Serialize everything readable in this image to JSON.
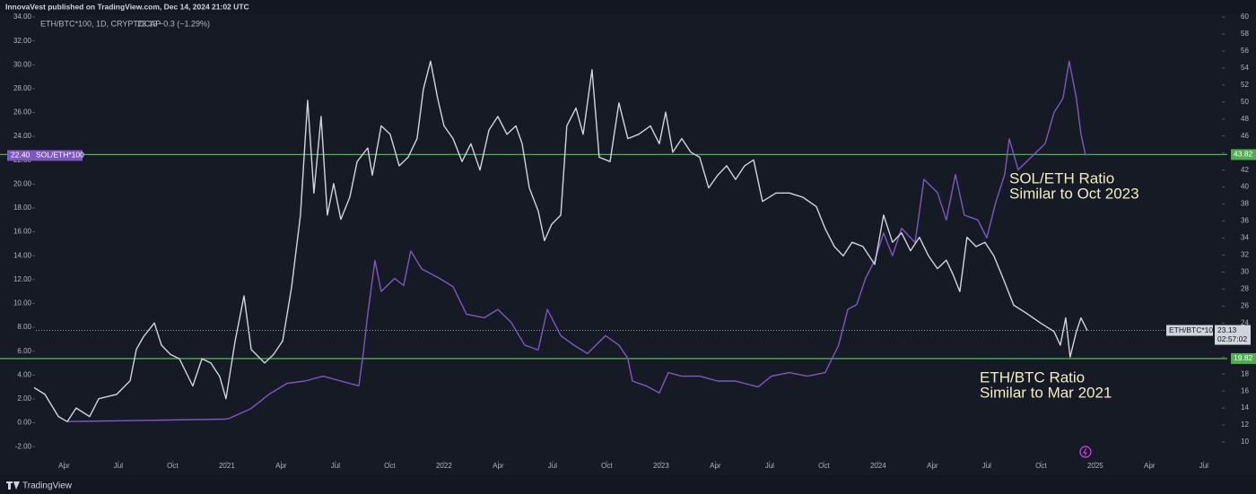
{
  "header": "InnovaVest published on TradingView.com, Dec 14, 2024 21:02 UTC",
  "footer": "TradingView",
  "chart_data": {
    "type": "line",
    "legend": {
      "symbol": "ETH/BTC*100, 1D, CRYPTOCAP",
      "change": "−0.3 (−1.29%)"
    },
    "xlim": [
      2019.955,
      2025.575
    ],
    "xticks": [
      {
        "value": 2020.25,
        "label": "Apr"
      },
      {
        "value": 2020.5,
        "label": "Jul"
      },
      {
        "value": 2020.75,
        "label": "Oct"
      },
      2021,
      {
        "value": 2021.25,
        "label": "Apr"
      },
      {
        "value": 2021.5,
        "label": "Jul"
      },
      {
        "value": 2021.75,
        "label": "Oct"
      },
      2022,
      {
        "value": 2022.25,
        "label": "Apr"
      },
      {
        "value": 2022.5,
        "label": "Jul"
      },
      {
        "value": 2022.75,
        "label": "Oct"
      },
      2023,
      {
        "value": 2023.25,
        "label": "Apr"
      },
      {
        "value": 2023.5,
        "label": "Jul"
      },
      {
        "value": 2023.75,
        "label": "Oct"
      },
      2024,
      {
        "value": 2024.25,
        "label": "Apr"
      },
      {
        "value": 2024.5,
        "label": "Jul"
      },
      {
        "value": 2024.75,
        "label": "Oct"
      },
      2025,
      {
        "value": 2025.25,
        "label": "Apr"
      },
      {
        "value": 2025.5,
        "label": "Jul"
      }
    ],
    "ylim": [
      -3.04,
      34.53
    ],
    "yticks": [
      {
        "value": 34,
        "label": "34.00"
      },
      {
        "value": 32,
        "label": "32.00"
      },
      {
        "value": 30,
        "label": "30.00"
      },
      {
        "value": 28,
        "label": "28.00"
      },
      {
        "value": 26,
        "label": "26.00"
      },
      {
        "value": 24,
        "label": "24.00"
      },
      {
        "value": 22,
        "label": "22.00"
      },
      {
        "value": 20,
        "label": "20.00"
      },
      {
        "value": 18,
        "label": "18.00"
      },
      {
        "value": 16,
        "label": "16.00"
      },
      {
        "value": 14,
        "label": "14.00"
      },
      {
        "value": 12,
        "label": "12.00"
      },
      {
        "value": 10,
        "label": "10.00"
      },
      {
        "value": 8,
        "label": "8.00"
      },
      {
        "value": 6,
        "label": "6.00"
      },
      {
        "value": 4,
        "label": "4.00"
      },
      {
        "value": 2,
        "label": "2.00"
      },
      {
        "value": 0,
        "label": "0.00"
      },
      {
        "value": -2,
        "label": "-2.00"
      }
    ],
    "y2lim": [
      8.0,
      60.74
    ],
    "y2ticks": [
      60,
      58,
      56,
      54,
      52,
      50,
      48,
      46,
      44,
      42,
      40,
      38,
      36,
      34,
      32,
      30,
      28,
      26,
      24,
      22,
      20,
      18,
      16,
      14,
      12,
      10
    ],
    "series": [
      {
        "name": "SOL/ETH*100",
        "color": "#7e57c2",
        "axis": "y",
        "x": [
          2020.265,
          2020.988,
          2021.009,
          2021.112,
          2021.195,
          2021.277,
          2021.36,
          2021.443,
          2021.525,
          2021.608,
          2021.628,
          2021.649,
          2021.682,
          2021.711,
          2021.773,
          2021.814,
          2021.847,
          2021.897,
          2021.98,
          2022.042,
          2022.104,
          2022.186,
          2022.248,
          2022.31,
          2022.372,
          2022.434,
          2022.476,
          2022.538,
          2022.599,
          2022.661,
          2022.744,
          2022.806,
          2022.847,
          2022.868,
          2022.93,
          2022.992,
          2023.033,
          2023.095,
          2023.178,
          2023.261,
          2023.343,
          2023.447,
          2023.509,
          2023.591,
          2023.674,
          2023.756,
          2023.818,
          2023.86,
          2023.901,
          2023.942,
          2023.984,
          2024.025,
          2024.066,
          2024.108,
          2024.17,
          2024.211,
          2024.273,
          2024.314,
          2024.356,
          2024.397,
          2024.459,
          2024.5,
          2024.542,
          2024.583,
          2024.604,
          2024.645,
          2024.707,
          2024.769,
          2024.81,
          2024.851,
          2024.88,
          2024.913,
          2024.934,
          2024.955
        ],
        "values": [
          0.1,
          0.3,
          0.35,
          1.2,
          2.4,
          3.3,
          3.5,
          3.9,
          3.5,
          3.1,
          5.8,
          9.1,
          13.6,
          11,
          12.1,
          11.5,
          14.4,
          12.9,
          12.1,
          11.4,
          9.1,
          8.8,
          9.5,
          8.4,
          6.5,
          6.1,
          9.5,
          7.3,
          6.5,
          5.8,
          7.3,
          6.5,
          5.4,
          3.5,
          3.1,
          2.5,
          4.2,
          3.9,
          3.9,
          3.5,
          3.5,
          3.0,
          3.9,
          4.2,
          3.9,
          4.2,
          6.5,
          9.5,
          9.9,
          12.1,
          13.6,
          15.9,
          14.0,
          16.3,
          15.1,
          20.4,
          19.3,
          17.0,
          20.8,
          17.4,
          17.0,
          15.5,
          18.5,
          20.8,
          23.8,
          21.2,
          22.3,
          23.4,
          26.0,
          27.2,
          30.3,
          27.2,
          24.2,
          22.4
        ],
        "last": {
          "value": 22.4,
          "label": "22.40"
        }
      },
      {
        "name": "ETH/BTC*100",
        "color": "#d1d4dc",
        "axis": "y2",
        "x": [
          2020.112,
          2020.162,
          2020.224,
          2020.265,
          2020.306,
          2020.368,
          2020.41,
          2020.492,
          2020.554,
          2020.583,
          2020.616,
          2020.666,
          2020.699,
          2020.74,
          2020.781,
          2020.843,
          2020.885,
          2020.926,
          2020.967,
          2020.996,
          2021.038,
          2021.079,
          2021.112,
          2021.174,
          2021.215,
          2021.257,
          2021.298,
          2021.339,
          2021.372,
          2021.401,
          2021.434,
          2021.463,
          2021.492,
          2021.525,
          2021.566,
          2021.6,
          2021.649,
          2021.67,
          2021.711,
          2021.752,
          2021.794,
          2021.835,
          2021.876,
          2021.905,
          2021.938,
          2021.971,
          2022.0,
          2022.042,
          2022.083,
          2022.124,
          2022.166,
          2022.207,
          2022.248,
          2022.29,
          2022.331,
          2022.36,
          2022.393,
          2022.434,
          2022.463,
          2022.496,
          2022.538,
          2022.566,
          2022.608,
          2022.641,
          2022.682,
          2022.715,
          2022.765,
          2022.806,
          2022.847,
          2022.897,
          2022.951,
          2022.992,
          2023.021,
          2023.054,
          2023.095,
          2023.137,
          2023.178,
          2023.219,
          2023.261,
          2023.302,
          2023.343,
          2023.385,
          2023.426,
          2023.467,
          2023.529,
          2023.591,
          2023.653,
          2023.715,
          2023.756,
          2023.798,
          2023.839,
          2023.88,
          2023.93,
          2023.984,
          2024.025,
          2024.066,
          2024.108,
          2024.149,
          2024.19,
          2024.232,
          2024.273,
          2024.314,
          2024.343,
          2024.376,
          2024.409,
          2024.451,
          2024.492,
          2024.533,
          2024.575,
          2024.624,
          2024.686,
          2024.748,
          2024.81,
          2024.839,
          2024.864,
          2024.884,
          2024.913,
          2024.934,
          2024.963
        ],
        "values": [
          16.4,
          15.6,
          13.0,
          12.4,
          14.0,
          13.0,
          15.1,
          15.6,
          17.2,
          20.9,
          22.4,
          24.0,
          21.4,
          20.3,
          19.8,
          16.6,
          19.8,
          19.3,
          17.7,
          15.1,
          21.9,
          27.2,
          20.9,
          19.3,
          20.3,
          21.9,
          28.2,
          36.7,
          50.2,
          39.3,
          48.3,
          36.7,
          40.4,
          36.2,
          38.8,
          43.0,
          44.6,
          41.4,
          47.2,
          46.2,
          42.5,
          43.5,
          45.7,
          51.5,
          54.8,
          50.4,
          47.2,
          45.7,
          43.0,
          45.1,
          42.0,
          46.7,
          48.3,
          46.2,
          47.2,
          45.1,
          39.9,
          37.2,
          33.7,
          35.6,
          36.7,
          47.2,
          49.3,
          46.2,
          53.8,
          43.5,
          43.0,
          49.9,
          45.7,
          46.2,
          47.2,
          45.1,
          48.8,
          44.1,
          45.7,
          44.1,
          43.5,
          39.9,
          41.4,
          42.5,
          40.9,
          42.5,
          43.2,
          38.3,
          39.3,
          39.3,
          38.8,
          37.7,
          35.1,
          33.0,
          31.9,
          33.5,
          33.0,
          30.9,
          36.7,
          33.5,
          34.6,
          32.5,
          34.1,
          31.9,
          30.4,
          31.4,
          29.8,
          27.7,
          34.1,
          33.0,
          33.5,
          31.9,
          29.3,
          26.1,
          25.1,
          24.0,
          23.0,
          21.4,
          24.6,
          20.0,
          23.0,
          24.6,
          23.13
        ],
        "last": {
          "value": 23.13,
          "label": "23.13"
        },
        "countdown": "02:57:02"
      }
    ],
    "levels": [
      {
        "value": 43.82,
        "label": "43.82",
        "axis": "y2",
        "color": "#4caf50"
      },
      {
        "value": 19.82,
        "label": "19.82",
        "axis": "y2",
        "color": "#4caf50"
      }
    ],
    "annotations": [
      {
        "lines": [
          "SOL/ETH Ratio",
          "Similar to Oct 2023"
        ]
      },
      {
        "lines": [
          "ETH/BTC Ratio",
          "Similar to Mar 2021"
        ]
      }
    ]
  }
}
